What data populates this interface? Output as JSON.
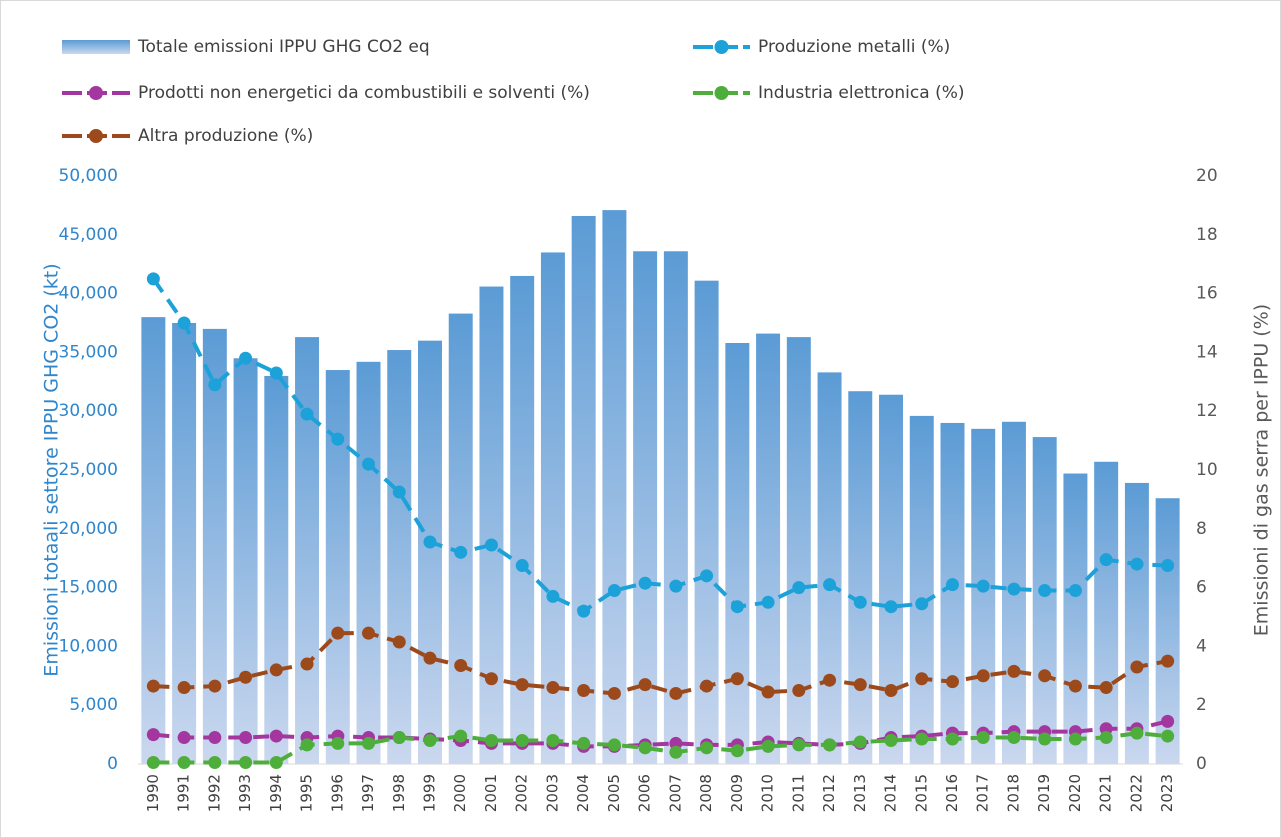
{
  "chart_data": {
    "type": "combo",
    "categories": [
      "1990",
      "1991",
      "1992",
      "1993",
      "1994",
      "1995",
      "1996",
      "1997",
      "1998",
      "1999",
      "2000",
      "2001",
      "2002",
      "2003",
      "2004",
      "2005",
      "2006",
      "2007",
      "2008",
      "2009",
      "2010",
      "2011",
      "2012",
      "2013",
      "2014",
      "2015",
      "2016",
      "2017",
      "2018",
      "2019",
      "2020",
      "2021",
      "2022",
      "2023"
    ],
    "y_label": "Emissioni totaali settore IPPU GHG CO2 (kt)",
    "y2_label": "Emissioni di gas serra per IPPU (%)",
    "ylim": [
      0,
      50000
    ],
    "yticks": [
      0,
      {
        "value": 5000,
        "label": "5,000"
      },
      {
        "value": 10000,
        "label": "10,000"
      },
      {
        "value": 15000,
        "label": "15,000"
      },
      {
        "value": 20000,
        "label": "20,000"
      },
      {
        "value": 25000,
        "label": "25,000"
      },
      {
        "value": 30000,
        "label": "30,000"
      },
      {
        "value": 35000,
        "label": "35,000"
      },
      {
        "value": 40000,
        "label": "40,000"
      },
      {
        "value": 45000,
        "label": "45,000"
      },
      {
        "value": 50000,
        "label": "50,000"
      }
    ],
    "y2lim": [
      0,
      20
    ],
    "y2ticks": [
      0,
      2,
      4,
      6,
      8,
      10,
      12,
      14,
      16,
      18,
      20
    ],
    "grid": false,
    "legend": "top",
    "line_style": "dashed",
    "series": [
      {
        "name": "Totale emissioni IPPU GHG CO2 eq",
        "type": "bar",
        "color": "#5b9bd5",
        "values": [
          38000,
          37500,
          37000,
          34500,
          33000,
          36300,
          33500,
          34200,
          35200,
          36000,
          38300,
          40600,
          41500,
          43500,
          46600,
          47100,
          43600,
          43600,
          41100,
          35800,
          36600,
          36300,
          33300,
          31700,
          31400,
          29600,
          29000,
          28500,
          29100,
          27800,
          24700,
          25700,
          23900,
          22600
        ]
      },
      {
        "name": "Produzione metalli (%)",
        "type": "line",
        "axis": "y2",
        "color": "#1ca2d8",
        "values": [
          16.5,
          15.0,
          12.9,
          13.8,
          13.3,
          11.9,
          11.05,
          10.2,
          9.25,
          7.55,
          7.2,
          7.45,
          6.75,
          5.7,
          5.2,
          5.9,
          6.15,
          6.05,
          6.4,
          5.35,
          5.5,
          6.0,
          6.1,
          5.5,
          5.35,
          5.45,
          6.1,
          6.05,
          5.95,
          5.9,
          5.9,
          6.95,
          6.8,
          6.75
        ]
      },
      {
        "name": "Prodotti non energetici  da combustibili e solventi (%)",
        "type": "line",
        "axis": "y2",
        "color": "#a3379f",
        "values": [
          1.0,
          0.9,
          0.9,
          0.9,
          0.95,
          0.9,
          0.95,
          0.9,
          0.9,
          0.85,
          0.8,
          0.7,
          0.7,
          0.7,
          0.6,
          0.6,
          0.65,
          0.7,
          0.65,
          0.65,
          0.75,
          0.7,
          0.65,
          0.7,
          0.9,
          0.95,
          1.05,
          1.05,
          1.1,
          1.1,
          1.1,
          1.2,
          1.2,
          1.45
        ]
      },
      {
        "name": "Industria elettronica (%)",
        "type": "line",
        "axis": "y2",
        "color": "#4eae3b",
        "values": [
          0.05,
          0.05,
          0.05,
          0.05,
          0.05,
          0.65,
          0.7,
          0.7,
          0.9,
          0.8,
          0.95,
          0.8,
          0.8,
          0.8,
          0.7,
          0.65,
          0.55,
          0.4,
          0.55,
          0.45,
          0.6,
          0.65,
          0.65,
          0.75,
          0.8,
          0.85,
          0.85,
          0.9,
          0.9,
          0.85,
          0.85,
          0.9,
          1.05,
          0.95
        ]
      },
      {
        "name": "Altra produzione (%)",
        "type": "line",
        "axis": "y2",
        "color": "#9c4a1c",
        "values": [
          2.65,
          2.6,
          2.65,
          2.95,
          3.2,
          3.4,
          4.45,
          4.45,
          4.15,
          3.6,
          3.35,
          2.9,
          2.7,
          2.6,
          2.5,
          2.4,
          2.7,
          2.4,
          2.65,
          2.9,
          2.45,
          2.5,
          2.85,
          2.7,
          2.5,
          2.9,
          2.8,
          3.0,
          3.15,
          3.0,
          2.65,
          2.6,
          3.3,
          3.5
        ]
      }
    ]
  }
}
